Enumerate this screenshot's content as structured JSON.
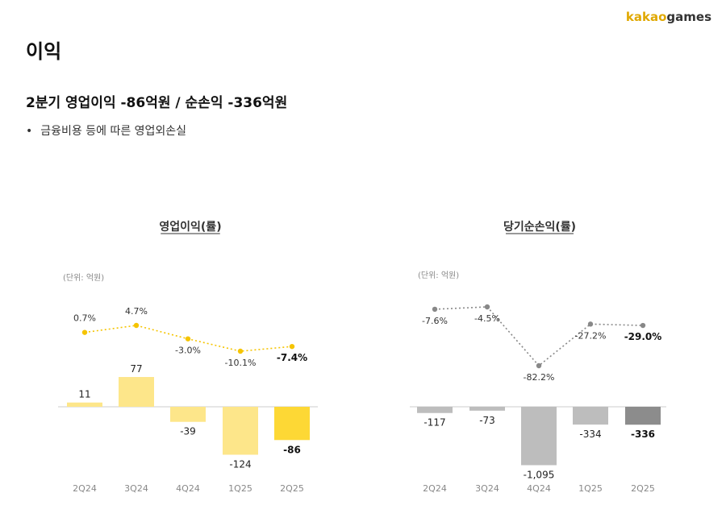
{
  "brand": {
    "part1": "kakao",
    "part2": "games"
  },
  "page_title": "이익",
  "subtitle": "2분기 영업이익 -86억원 / 순손익 -336억원",
  "bullet": "금융비용 등에 따른 영업외손실",
  "colors": {
    "op_bar": "#fde68a",
    "op_bar_highlight": "#fdd835",
    "op_line": "#f5c400",
    "net_bar": "#bdbdbd",
    "net_bar_highlight": "#8c8c8c",
    "net_line": "#888888",
    "baseline": "#cccccc"
  },
  "chart_data": [
    {
      "type": "bar",
      "title": "영업이익(률)",
      "unit_label": "(단위: 억원)",
      "categories": [
        "2Q24",
        "3Q24",
        "4Q24",
        "1Q25",
        "2Q25"
      ],
      "series": [
        {
          "values": [
            11,
            77,
            -39,
            -124,
            -86
          ]
        }
      ],
      "value_labels": [
        "11",
        "77",
        "-39",
        "-124",
        "-86"
      ],
      "line": {
        "values": [
          0.7,
          4.7,
          -3.0,
          -10.1,
          -7.4
        ],
        "labels": [
          "0.7%",
          "4.7%",
          "-3.0%",
          "-10.1%",
          "-7.4%"
        ],
        "style": "dotted"
      },
      "highlight_index": 4
    },
    {
      "type": "bar",
      "title": "당기순손익(률)",
      "unit_label": "(단위: 억원)",
      "categories": [
        "2Q24",
        "3Q24",
        "4Q24",
        "1Q25",
        "2Q25"
      ],
      "series": [
        {
          "values": [
            -117,
            -73,
            -1095,
            -334,
            -336
          ]
        }
      ],
      "value_labels": [
        "-117",
        "-73",
        "-1,095",
        "-334",
        "-336"
      ],
      "line": {
        "values": [
          -7.6,
          -4.5,
          -82.2,
          -27.2,
          -29.0
        ],
        "labels": [
          "-7.6%",
          "-4.5%",
          "-82.2%",
          "-27.2%",
          "-29.0%"
        ],
        "style": "dotted"
      },
      "highlight_index": 4
    }
  ]
}
